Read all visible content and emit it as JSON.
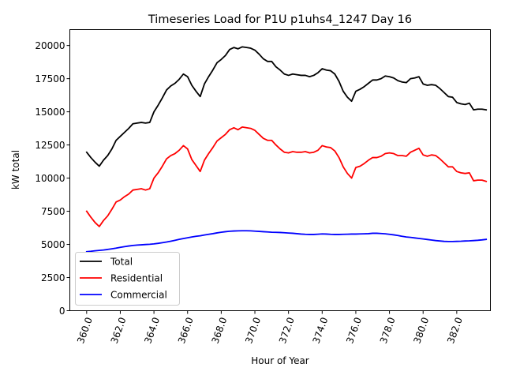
{
  "chart_data": {
    "type": "line",
    "title": "Timeseries Load for P1U p1uhs4_1247  Day 16",
    "xlabel": "Hour of Year",
    "ylabel": "kW total",
    "xlim": [
      359.0,
      384.0
    ],
    "ylim": [
      0,
      21200
    ],
    "xticks": [
      360.0,
      362.0,
      364.0,
      366.0,
      368.0,
      370.0,
      372.0,
      374.0,
      376.0,
      378.0,
      380.0,
      382.0
    ],
    "xtick_labels": [
      "360.0",
      "362.0",
      "364.0",
      "366.0",
      "368.0",
      "370.0",
      "372.0",
      "374.0",
      "376.0",
      "378.0",
      "380.0",
      "382.0"
    ],
    "yticks": [
      0,
      2500,
      5000,
      7500,
      10000,
      12500,
      15000,
      17500,
      20000
    ],
    "ytick_labels": [
      "0",
      "2500",
      "5000",
      "7500",
      "10000",
      "12500",
      "15000",
      "17500",
      "20000"
    ],
    "legend_position": "lower-left",
    "x": [
      360.0,
      360.25,
      360.5,
      360.75,
      361.0,
      361.25,
      361.5,
      361.75,
      362.0,
      362.25,
      362.5,
      362.75,
      363.0,
      363.25,
      363.5,
      363.75,
      364.0,
      364.25,
      364.5,
      364.75,
      365.0,
      365.25,
      365.5,
      365.75,
      366.0,
      366.25,
      366.5,
      366.75,
      367.0,
      367.25,
      367.5,
      367.75,
      368.0,
      368.25,
      368.5,
      368.75,
      369.0,
      369.25,
      369.5,
      369.75,
      370.0,
      370.25,
      370.5,
      370.75,
      371.0,
      371.25,
      371.5,
      371.75,
      372.0,
      372.25,
      372.5,
      372.75,
      373.0,
      373.25,
      373.5,
      373.75,
      374.0,
      374.25,
      374.5,
      374.75,
      375.0,
      375.25,
      375.5,
      375.75,
      376.0,
      376.25,
      376.5,
      376.75,
      377.0,
      377.25,
      377.5,
      377.75,
      378.0,
      378.25,
      378.5,
      378.75,
      379.0,
      379.25,
      379.5,
      379.75,
      380.0,
      380.25,
      380.5,
      380.75,
      381.0,
      381.25,
      381.5,
      381.75,
      382.0,
      382.25,
      382.5,
      382.75,
      383.0,
      383.25,
      383.5,
      383.75
    ],
    "series": [
      {
        "name": "Total",
        "color": "#000000",
        "values": [
          11950,
          11550,
          11200,
          10900,
          11350,
          11700,
          12200,
          12850,
          13150,
          13450,
          13750,
          14100,
          14150,
          14200,
          14150,
          14200,
          15000,
          15500,
          16050,
          16650,
          16950,
          17150,
          17450,
          17850,
          17650,
          17000,
          16550,
          16150,
          17100,
          17650,
          18150,
          18700,
          18950,
          19250,
          19700,
          19850,
          19750,
          19900,
          19850,
          19800,
          19650,
          19350,
          19000,
          18800,
          18800,
          18400,
          18150,
          17850,
          17750,
          17850,
          17800,
          17750,
          17750,
          17650,
          17750,
          17950,
          18250,
          18150,
          18100,
          17850,
          17300,
          16550,
          16100,
          15800,
          16550,
          16700,
          16900,
          17150,
          17400,
          17400,
          17500,
          17700,
          17650,
          17550,
          17350,
          17250,
          17200,
          17500,
          17550,
          17650,
          17100,
          17000,
          17050,
          17000,
          16750,
          16450,
          16150,
          16100,
          15700,
          15600,
          15550,
          15650,
          15150,
          15200,
          15200,
          15150
        ]
      },
      {
        "name": "Residential",
        "color": "#ff0000",
        "values": [
          7500,
          7050,
          6650,
          6350,
          6800,
          7150,
          7650,
          8200,
          8350,
          8600,
          8800,
          9100,
          9150,
          9200,
          9100,
          9200,
          10000,
          10400,
          10900,
          11450,
          11700,
          11850,
          12100,
          12450,
          12200,
          11400,
          10950,
          10500,
          11350,
          11850,
          12300,
          12800,
          13050,
          13300,
          13650,
          13800,
          13650,
          13850,
          13800,
          13750,
          13600,
          13300,
          13000,
          12850,
          12850,
          12500,
          12200,
          11950,
          11900,
          12000,
          11950,
          11950,
          12000,
          11900,
          11950,
          12100,
          12450,
          12350,
          12300,
          12050,
          11550,
          10850,
          10350,
          10000,
          10800,
          10900,
          11100,
          11350,
          11550,
          11550,
          11650,
          11850,
          11900,
          11850,
          11700,
          11700,
          11650,
          11950,
          12100,
          12250,
          11750,
          11650,
          11750,
          11700,
          11450,
          11150,
          10850,
          10850,
          10500,
          10400,
          10350,
          10400,
          9800,
          9850,
          9850,
          9750
        ]
      },
      {
        "name": "Commercial",
        "color": "#0000ff",
        "values": [
          4450,
          4480,
          4520,
          4550,
          4580,
          4620,
          4670,
          4720,
          4780,
          4830,
          4880,
          4920,
          4950,
          4970,
          4990,
          5010,
          5040,
          5080,
          5130,
          5180,
          5240,
          5310,
          5380,
          5440,
          5500,
          5560,
          5610,
          5650,
          5710,
          5760,
          5810,
          5870,
          5920,
          5960,
          5990,
          6010,
          6020,
          6030,
          6030,
          6020,
          6000,
          5980,
          5960,
          5940,
          5920,
          5910,
          5900,
          5880,
          5860,
          5840,
          5810,
          5780,
          5760,
          5750,
          5750,
          5770,
          5790,
          5780,
          5760,
          5750,
          5750,
          5760,
          5770,
          5780,
          5780,
          5790,
          5800,
          5810,
          5840,
          5840,
          5820,
          5800,
          5760,
          5720,
          5670,
          5610,
          5560,
          5530,
          5490,
          5450,
          5410,
          5370,
          5330,
          5290,
          5260,
          5230,
          5220,
          5220,
          5230,
          5240,
          5260,
          5270,
          5290,
          5310,
          5340,
          5380
        ]
      }
    ]
  }
}
